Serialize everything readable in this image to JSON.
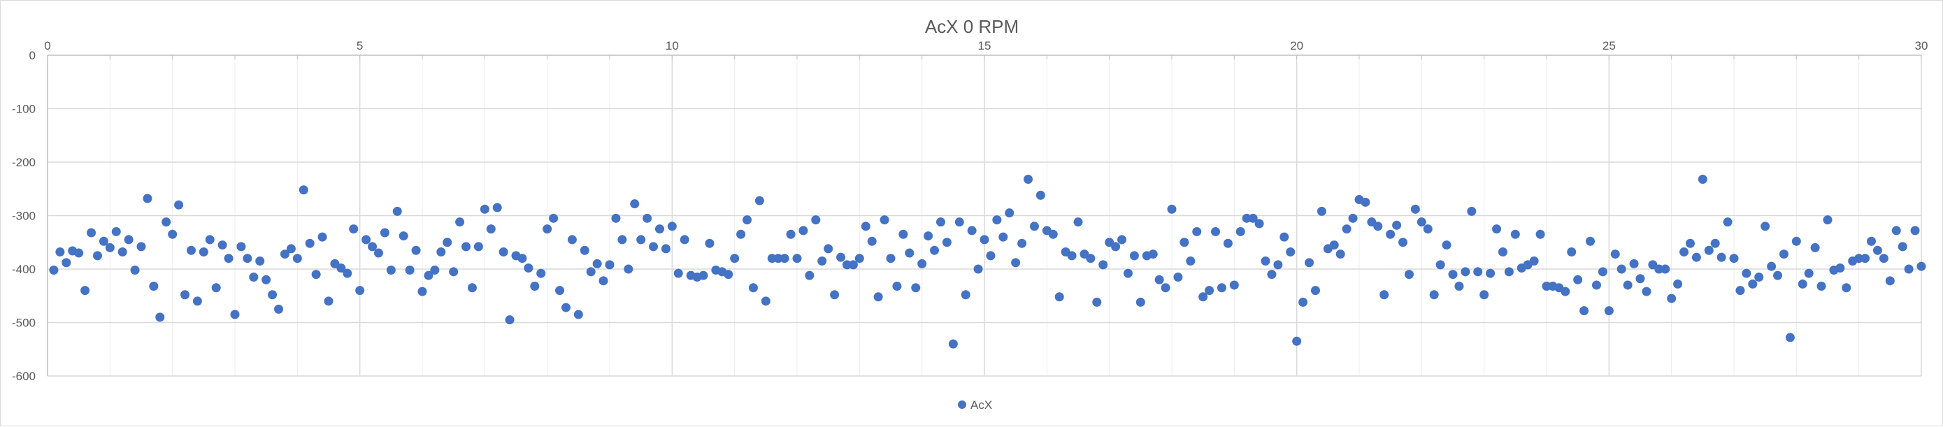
{
  "chart_data": {
    "type": "scatter",
    "title": "AcX 0 RPM",
    "xlabel": "",
    "ylabel": "",
    "xlim": [
      0,
      30
    ],
    "ylim": [
      -600,
      0
    ],
    "x_ticks": [
      0,
      5,
      10,
      15,
      20,
      25,
      30
    ],
    "y_ticks": [
      0,
      -100,
      -200,
      -300,
      -400,
      -500,
      -600
    ],
    "grid": true,
    "legend_position": "bottom",
    "marker_color": "#4472c4",
    "series": [
      {
        "name": "AcX",
        "points": [
          [
            0.1,
            -402
          ],
          [
            0.2,
            -368
          ],
          [
            0.3,
            -388
          ],
          [
            0.4,
            -366
          ],
          [
            0.5,
            -370
          ],
          [
            0.6,
            -440
          ],
          [
            0.7,
            -332
          ],
          [
            0.8,
            -375
          ],
          [
            0.9,
            -348
          ],
          [
            1.0,
            -360
          ],
          [
            1.1,
            -330
          ],
          [
            1.2,
            -368
          ],
          [
            1.3,
            -345
          ],
          [
            1.4,
            -402
          ],
          [
            1.5,
            -358
          ],
          [
            1.6,
            -268
          ],
          [
            1.7,
            -432
          ],
          [
            1.8,
            -490
          ],
          [
            1.9,
            -312
          ],
          [
            2.0,
            -335
          ],
          [
            2.1,
            -280
          ],
          [
            2.2,
            -448
          ],
          [
            2.3,
            -365
          ],
          [
            2.4,
            -460
          ],
          [
            2.5,
            -368
          ],
          [
            2.6,
            -345
          ],
          [
            2.7,
            -435
          ],
          [
            2.8,
            -355
          ],
          [
            2.9,
            -380
          ],
          [
            3.0,
            -485
          ],
          [
            3.1,
            -358
          ],
          [
            3.2,
            -380
          ],
          [
            3.3,
            -415
          ],
          [
            3.4,
            -385
          ],
          [
            3.5,
            -420
          ],
          [
            3.6,
            -448
          ],
          [
            3.7,
            -475
          ],
          [
            3.8,
            -372
          ],
          [
            3.9,
            -362
          ],
          [
            4.0,
            -380
          ],
          [
            4.1,
            -252
          ],
          [
            4.2,
            -352
          ],
          [
            4.3,
            -410
          ],
          [
            4.4,
            -340
          ],
          [
            4.5,
            -460
          ],
          [
            4.6,
            -390
          ],
          [
            4.7,
            -398
          ],
          [
            4.8,
            -408
          ],
          [
            4.9,
            -325
          ],
          [
            5.0,
            -440
          ],
          [
            5.1,
            -345
          ],
          [
            5.2,
            -358
          ],
          [
            5.3,
            -370
          ],
          [
            5.4,
            -332
          ],
          [
            5.5,
            -402
          ],
          [
            5.6,
            -292
          ],
          [
            5.7,
            -338
          ],
          [
            5.8,
            -402
          ],
          [
            5.9,
            -365
          ],
          [
            6.0,
            -442
          ],
          [
            6.1,
            -412
          ],
          [
            6.2,
            -402
          ],
          [
            6.3,
            -368
          ],
          [
            6.4,
            -350
          ],
          [
            6.5,
            -405
          ],
          [
            6.6,
            -312
          ],
          [
            6.7,
            -358
          ],
          [
            6.8,
            -435
          ],
          [
            6.9,
            -358
          ],
          [
            7.0,
            -288
          ],
          [
            7.1,
            -325
          ],
          [
            7.2,
            -285
          ],
          [
            7.3,
            -368
          ],
          [
            7.4,
            -495
          ],
          [
            7.5,
            -375
          ],
          [
            7.6,
            -380
          ],
          [
            7.7,
            -398
          ],
          [
            7.8,
            -432
          ],
          [
            7.9,
            -408
          ],
          [
            8.0,
            -325
          ],
          [
            8.1,
            -305
          ],
          [
            8.2,
            -440
          ],
          [
            8.3,
            -472
          ],
          [
            8.4,
            -345
          ],
          [
            8.5,
            -485
          ],
          [
            8.6,
            -365
          ],
          [
            8.7,
            -405
          ],
          [
            8.8,
            -390
          ],
          [
            8.9,
            -422
          ],
          [
            9.0,
            -392
          ],
          [
            9.1,
            -305
          ],
          [
            9.2,
            -345
          ],
          [
            9.3,
            -400
          ],
          [
            9.4,
            -278
          ],
          [
            9.5,
            -345
          ],
          [
            9.6,
            -305
          ],
          [
            9.7,
            -358
          ],
          [
            9.8,
            -325
          ],
          [
            9.9,
            -362
          ],
          [
            10.0,
            -320
          ],
          [
            10.1,
            -408
          ],
          [
            10.2,
            -345
          ],
          [
            10.3,
            -412
          ],
          [
            10.4,
            -415
          ],
          [
            10.5,
            -412
          ],
          [
            10.6,
            -352
          ],
          [
            10.7,
            -402
          ],
          [
            10.8,
            -405
          ],
          [
            10.9,
            -410
          ],
          [
            11.0,
            -380
          ],
          [
            11.1,
            -335
          ],
          [
            11.2,
            -308
          ],
          [
            11.3,
            -435
          ],
          [
            11.4,
            -272
          ],
          [
            11.5,
            -460
          ],
          [
            11.6,
            -380
          ],
          [
            11.7,
            -380
          ],
          [
            11.8,
            -380
          ],
          [
            11.9,
            -335
          ],
          [
            12.0,
            -380
          ],
          [
            12.1,
            -328
          ],
          [
            12.2,
            -412
          ],
          [
            12.3,
            -308
          ],
          [
            12.4,
            -385
          ],
          [
            12.5,
            -362
          ],
          [
            12.6,
            -448
          ],
          [
            12.7,
            -378
          ],
          [
            12.8,
            -392
          ],
          [
            12.9,
            -392
          ],
          [
            13.0,
            -380
          ],
          [
            13.1,
            -320
          ],
          [
            13.2,
            -348
          ],
          [
            13.3,
            -452
          ],
          [
            13.4,
            -308
          ],
          [
            13.5,
            -380
          ],
          [
            13.6,
            -432
          ],
          [
            13.7,
            -335
          ],
          [
            13.8,
            -370
          ],
          [
            13.9,
            -435
          ],
          [
            14.0,
            -390
          ],
          [
            14.1,
            -338
          ],
          [
            14.2,
            -365
          ],
          [
            14.3,
            -312
          ],
          [
            14.4,
            -350
          ],
          [
            14.5,
            -540
          ],
          [
            14.6,
            -312
          ],
          [
            14.7,
            -448
          ],
          [
            14.8,
            -328
          ],
          [
            14.9,
            -400
          ],
          [
            15.0,
            -345
          ],
          [
            15.1,
            -375
          ],
          [
            15.2,
            -308
          ],
          [
            15.3,
            -340
          ],
          [
            15.4,
            -295
          ],
          [
            15.5,
            -388
          ],
          [
            15.6,
            -352
          ],
          [
            15.7,
            -232
          ],
          [
            15.8,
            -320
          ],
          [
            15.9,
            -262
          ],
          [
            16.0,
            -328
          ],
          [
            16.1,
            -335
          ],
          [
            16.2,
            -452
          ],
          [
            16.3,
            -368
          ],
          [
            16.4,
            -375
          ],
          [
            16.5,
            -312
          ],
          [
            16.6,
            -372
          ],
          [
            16.7,
            -380
          ],
          [
            16.8,
            -462
          ],
          [
            16.9,
            -392
          ],
          [
            17.0,
            -350
          ],
          [
            17.1,
            -358
          ],
          [
            17.2,
            -345
          ],
          [
            17.3,
            -408
          ],
          [
            17.4,
            -375
          ],
          [
            17.5,
            -462
          ],
          [
            17.6,
            -375
          ],
          [
            17.7,
            -372
          ],
          [
            17.8,
            -420
          ],
          [
            17.9,
            -435
          ],
          [
            18.0,
            -288
          ],
          [
            18.1,
            -415
          ],
          [
            18.2,
            -350
          ],
          [
            18.3,
            -385
          ],
          [
            18.4,
            -330
          ],
          [
            18.5,
            -452
          ],
          [
            18.6,
            -440
          ],
          [
            18.7,
            -330
          ],
          [
            18.8,
            -435
          ],
          [
            18.9,
            -352
          ],
          [
            19.0,
            -430
          ],
          [
            19.1,
            -330
          ],
          [
            19.2,
            -305
          ],
          [
            19.3,
            -305
          ],
          [
            19.4,
            -315
          ],
          [
            19.5,
            -385
          ],
          [
            19.6,
            -410
          ],
          [
            19.7,
            -392
          ],
          [
            19.8,
            -340
          ],
          [
            19.9,
            -368
          ],
          [
            20.0,
            -535
          ],
          [
            20.1,
            -462
          ],
          [
            20.2,
            -388
          ],
          [
            20.3,
            -440
          ],
          [
            20.4,
            -292
          ],
          [
            20.5,
            -362
          ],
          [
            20.6,
            -355
          ],
          [
            20.7,
            -372
          ],
          [
            20.8,
            -325
          ],
          [
            20.9,
            -305
          ],
          [
            21.0,
            -270
          ],
          [
            21.1,
            -275
          ],
          [
            21.2,
            -312
          ],
          [
            21.3,
            -320
          ],
          [
            21.4,
            -448
          ],
          [
            21.5,
            -335
          ],
          [
            21.6,
            -318
          ],
          [
            21.7,
            -350
          ],
          [
            21.8,
            -410
          ],
          [
            21.9,
            -288
          ],
          [
            22.0,
            -312
          ],
          [
            22.1,
            -325
          ],
          [
            22.2,
            -448
          ],
          [
            22.3,
            -392
          ],
          [
            22.4,
            -355
          ],
          [
            22.5,
            -410
          ],
          [
            22.6,
            -432
          ],
          [
            22.7,
            -405
          ],
          [
            22.8,
            -292
          ],
          [
            22.9,
            -405
          ],
          [
            23.0,
            -448
          ],
          [
            23.1,
            -408
          ],
          [
            23.2,
            -325
          ],
          [
            23.3,
            -368
          ],
          [
            23.4,
            -405
          ],
          [
            23.5,
            -335
          ],
          [
            23.6,
            -398
          ],
          [
            23.7,
            -392
          ],
          [
            23.8,
            -385
          ],
          [
            23.9,
            -335
          ],
          [
            24.0,
            -432
          ],
          [
            24.1,
            -432
          ],
          [
            24.2,
            -435
          ],
          [
            24.3,
            -442
          ],
          [
            24.4,
            -368
          ],
          [
            24.5,
            -420
          ],
          [
            24.6,
            -478
          ],
          [
            24.7,
            -348
          ],
          [
            24.8,
            -430
          ],
          [
            24.9,
            -405
          ],
          [
            25.0,
            -478
          ],
          [
            25.1,
            -372
          ],
          [
            25.2,
            -400
          ],
          [
            25.3,
            -430
          ],
          [
            25.4,
            -390
          ],
          [
            25.5,
            -418
          ],
          [
            25.6,
            -442
          ],
          [
            25.7,
            -392
          ],
          [
            25.8,
            -400
          ],
          [
            25.9,
            -400
          ],
          [
            26.0,
            -455
          ],
          [
            26.1,
            -428
          ],
          [
            26.2,
            -368
          ],
          [
            26.3,
            -352
          ],
          [
            26.4,
            -378
          ],
          [
            26.5,
            -232
          ],
          [
            26.6,
            -365
          ],
          [
            26.7,
            -352
          ],
          [
            26.8,
            -378
          ],
          [
            26.9,
            -312
          ],
          [
            27.0,
            -380
          ],
          [
            27.1,
            -440
          ],
          [
            27.2,
            -408
          ],
          [
            27.3,
            -428
          ],
          [
            27.4,
            -415
          ],
          [
            27.5,
            -320
          ],
          [
            27.6,
            -395
          ],
          [
            27.7,
            -412
          ],
          [
            27.8,
            -372
          ],
          [
            27.9,
            -528
          ],
          [
            28.0,
            -348
          ],
          [
            28.1,
            -428
          ],
          [
            28.2,
            -408
          ],
          [
            28.3,
            -360
          ],
          [
            28.4,
            -432
          ],
          [
            28.5,
            -308
          ],
          [
            28.6,
            -402
          ],
          [
            28.7,
            -398
          ],
          [
            28.8,
            -435
          ],
          [
            28.9,
            -385
          ],
          [
            29.0,
            -380
          ],
          [
            29.1,
            -380
          ],
          [
            29.2,
            -348
          ],
          [
            29.3,
            -365
          ],
          [
            29.4,
            -380
          ],
          [
            29.5,
            -422
          ],
          [
            29.6,
            -328
          ],
          [
            29.7,
            -358
          ],
          [
            29.8,
            -400
          ],
          [
            29.9,
            -328
          ],
          [
            30.0,
            -395
          ]
        ]
      }
    ]
  }
}
